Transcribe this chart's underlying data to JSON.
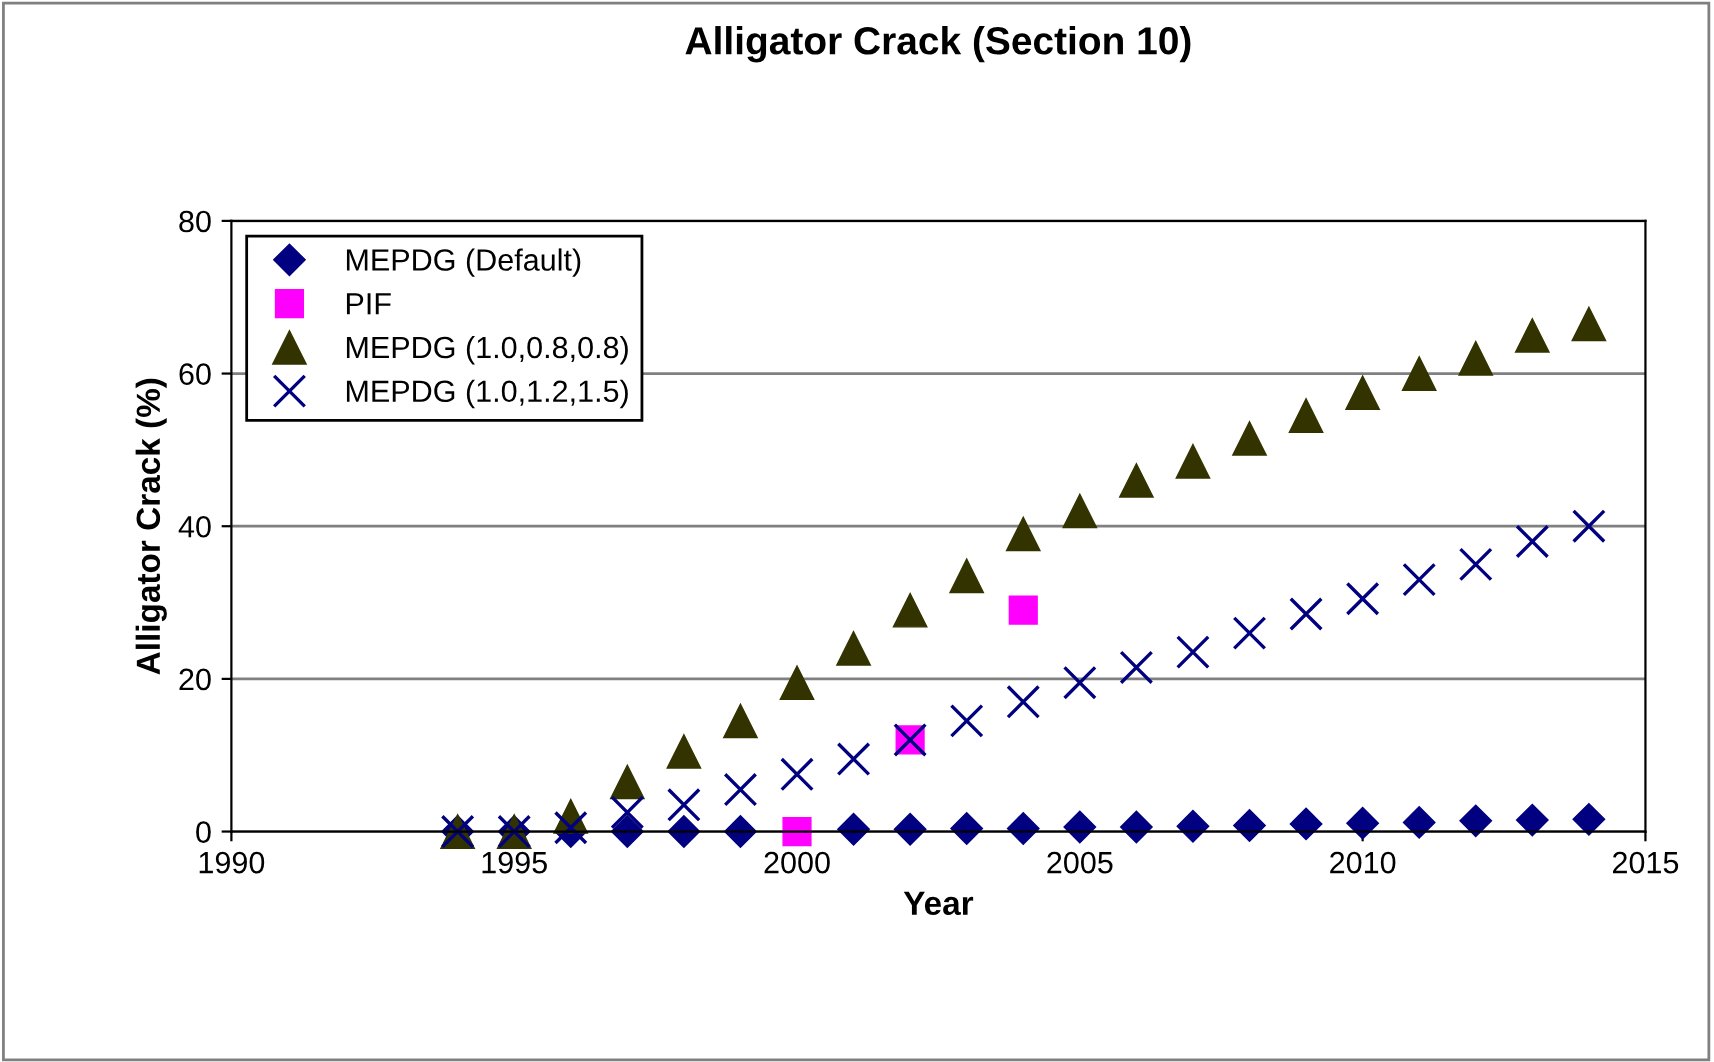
{
  "chart_data": {
    "type": "scatter",
    "title": "Alligator Crack (Section 10)",
    "xlabel": "Year",
    "ylabel": "Alligator Crack (%)",
    "xlim": [
      1990,
      2015
    ],
    "xticks": [
      1990,
      1995,
      2000,
      2005,
      2010,
      2015
    ],
    "ylim": [
      0,
      80
    ],
    "yticks": [
      0,
      20,
      40,
      60,
      80
    ],
    "grid": "y",
    "legend": "top left",
    "series": [
      {
        "name": "MEPDG (Default)",
        "color": "#000080",
        "marker": "diamond",
        "x": [
          1994,
          1995,
          1996,
          1997,
          1998,
          1999,
          2000,
          2001,
          2002,
          2003,
          2004,
          2005,
          2006,
          2007,
          2008,
          2009,
          2010,
          2011,
          2012,
          2013,
          2014
        ],
        "values": [
          0,
          0,
          0,
          0,
          0,
          0,
          null,
          0.3,
          0.3,
          0.4,
          0.4,
          0.6,
          0.6,
          0.7,
          0.8,
          1.0,
          1.1,
          1.2,
          1.4,
          1.5,
          1.6
        ]
      },
      {
        "name": "PIF",
        "color": "#ff00ff",
        "marker": "square",
        "x": [
          2000,
          2002,
          2004
        ],
        "values": [
          0,
          12,
          29
        ]
      },
      {
        "name": "MEPDG (1.0,0.8,0.8)",
        "color": "#333300",
        "marker": "triangle",
        "x": [
          1994,
          1995,
          1996,
          1997,
          1998,
          1999,
          2000,
          2001,
          2002,
          2003,
          2004,
          2005,
          2006,
          2007,
          2008,
          2009,
          2010,
          2011,
          2012,
          2013,
          2014
        ],
        "values": [
          0,
          0,
          2,
          6.5,
          10.5,
          14.5,
          19.5,
          24,
          29,
          33.5,
          39,
          42,
          46,
          48.5,
          51.5,
          54.5,
          57.5,
          60,
          62,
          65,
          66.5
        ]
      },
      {
        "name": "MEPDG (1.0,1.2,1.5)",
        "color": "#000080",
        "marker": "cross",
        "x": [
          1994,
          1995,
          1996,
          1997,
          1998,
          1999,
          2000,
          2001,
          2002,
          2003,
          2004,
          2005,
          2006,
          2007,
          2008,
          2009,
          2010,
          2011,
          2012,
          2013,
          2014
        ],
        "values": [
          0,
          0,
          0.5,
          2.5,
          3.5,
          5.5,
          7.5,
          9.5,
          12,
          14.5,
          17,
          19.5,
          21.5,
          23.5,
          26,
          28.5,
          30.5,
          33,
          35,
          38,
          40
        ]
      }
    ]
  }
}
